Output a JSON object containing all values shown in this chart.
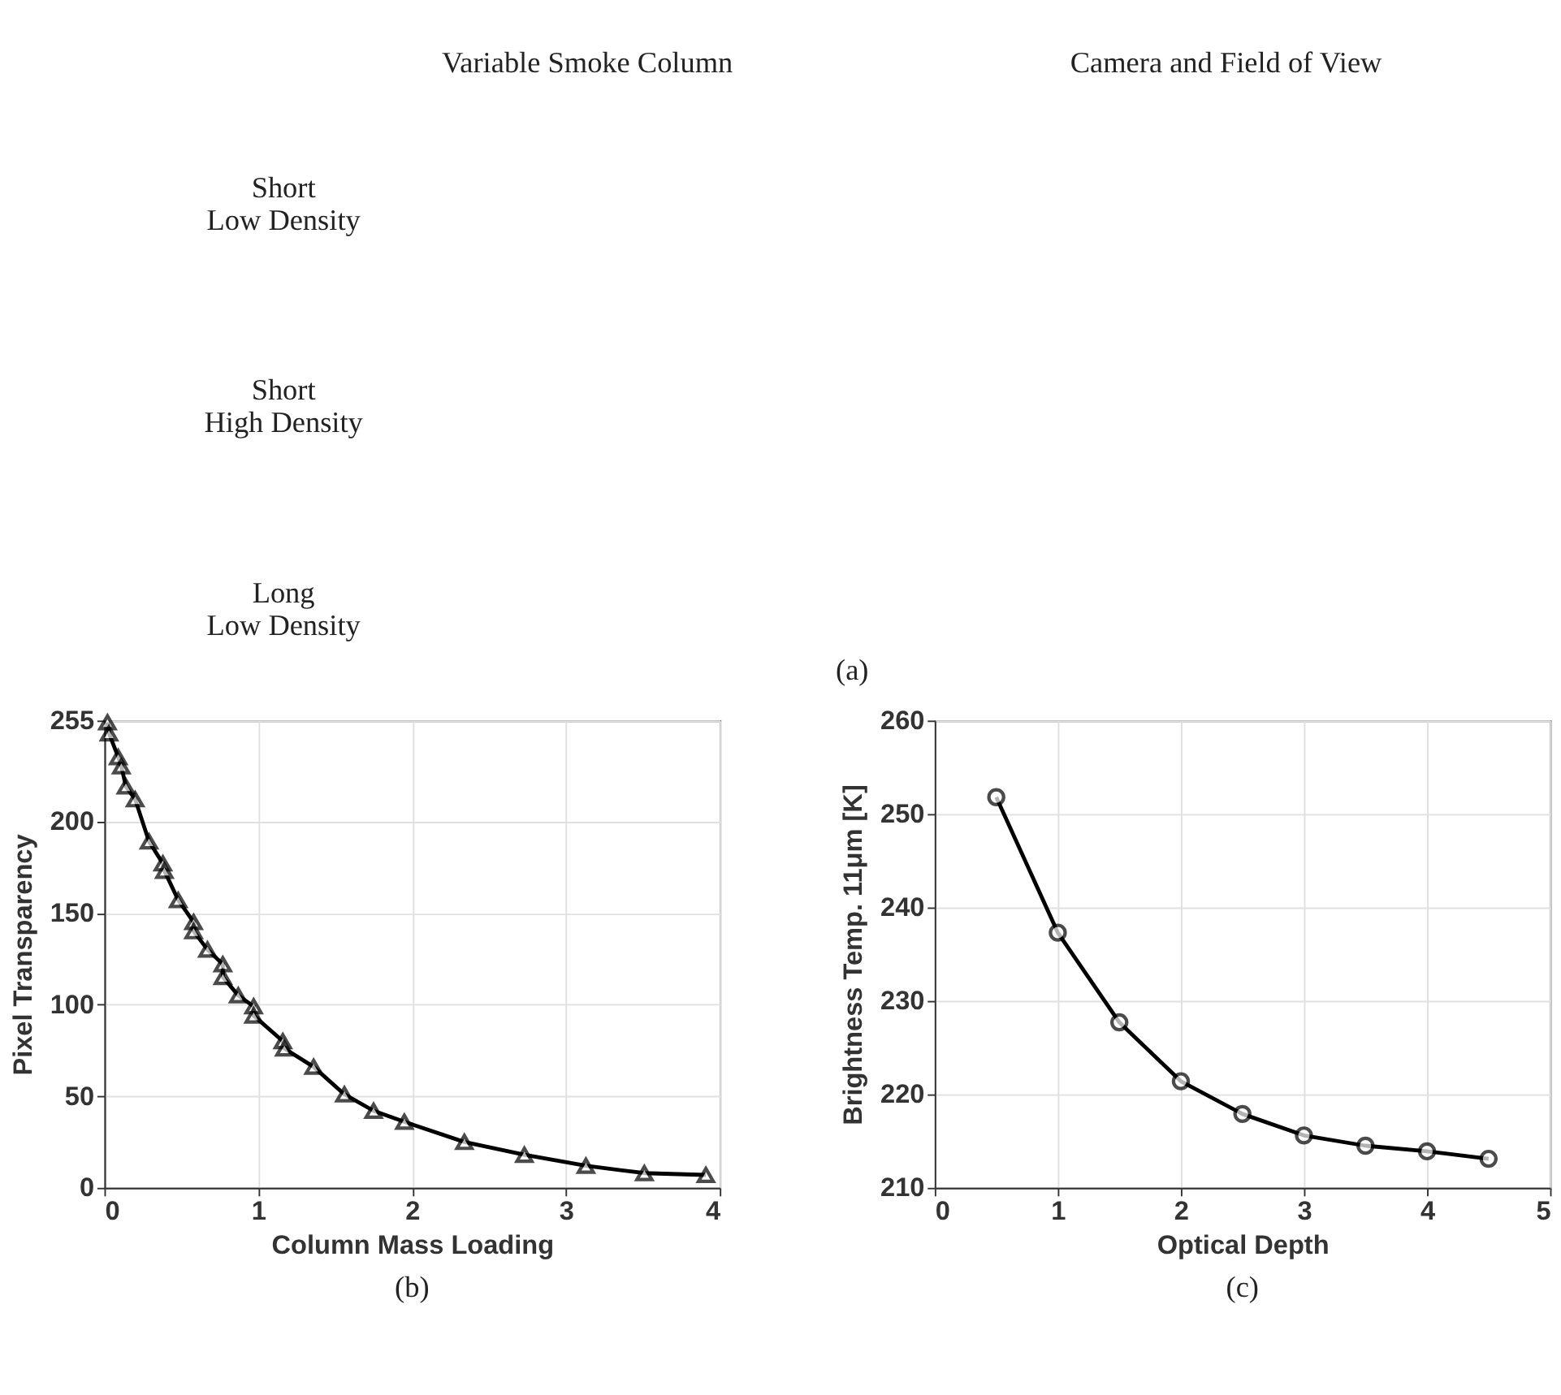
{
  "chart_data": [
    {
      "type": "other",
      "annotations": [
        "Variable Smoke Column",
        "Camera and Field of View",
        "Short\nLow Density",
        "Short\nHigh Density",
        "Long\nLow Density",
        "(a)"
      ]
    },
    {
      "type": "line",
      "xlabel": "Column Mass Loading",
      "ylabel": "Pixel Transparency",
      "annotations": [
        "(b)"
      ],
      "marker": "triangle",
      "line_style": "solid",
      "grid": true,
      "xlim": [
        0,
        4
      ],
      "xticks": [
        0,
        1,
        2,
        3,
        4
      ],
      "ylim": [
        0,
        255
      ],
      "yticks": [
        0,
        50,
        100,
        150,
        200,
        255
      ],
      "series": [
        {
          "color": "#000000",
          "x": [
            0.02,
            0.03,
            0.09,
            0.11,
            0.14,
            0.2,
            0.29,
            0.38,
            0.39,
            0.48,
            0.58,
            0.58,
            0.67,
            0.77,
            0.77,
            0.87,
            0.97,
            0.97,
            1.16,
            1.17,
            1.36,
            1.56,
            1.75,
            1.95,
            2.34,
            2.73,
            3.13,
            3.51,
            3.91
          ],
          "values": [
            254,
            248,
            235,
            230,
            219,
            212,
            189,
            177,
            173,
            157,
            145,
            140,
            130,
            122,
            115,
            105,
            99,
            94,
            80,
            76,
            66,
            51,
            42,
            36,
            25,
            18,
            12,
            8,
            7
          ]
        }
      ]
    },
    {
      "type": "line",
      "xlabel": "Optical Depth",
      "ylabel": "Brightness Temp. 11μm [K]",
      "annotations": [
        "(c)"
      ],
      "marker": "circle",
      "line_style": "solid",
      "grid": true,
      "xlim": [
        0,
        5
      ],
      "xticks": [
        0,
        1,
        2,
        3,
        4,
        5
      ],
      "ylim": [
        210,
        260
      ],
      "yticks": [
        210,
        220,
        230,
        240,
        250,
        260
      ],
      "series": [
        {
          "color": "#000000",
          "x": [
            0.5,
            1,
            1.5,
            2,
            2.5,
            3,
            3.5,
            4,
            4.5
          ],
          "values": [
            251.8,
            237.3,
            227.7,
            221.4,
            217.9,
            215.6,
            214.5,
            213.9,
            213.1
          ]
        }
      ]
    }
  ]
}
